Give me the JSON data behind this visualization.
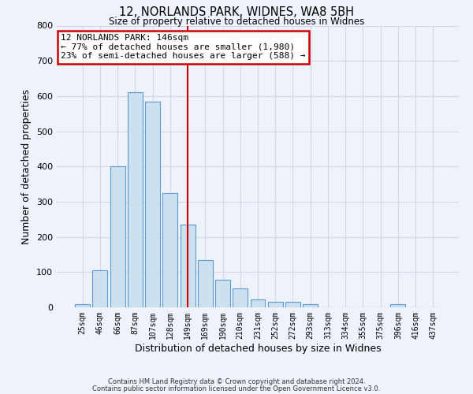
{
  "title1": "12, NORLANDS PARK, WIDNES, WA8 5BH",
  "title2": "Size of property relative to detached houses in Widnes",
  "xlabel": "Distribution of detached houses by size in Widnes",
  "ylabel": "Number of detached properties",
  "bar_labels": [
    "25sqm",
    "46sqm",
    "66sqm",
    "87sqm",
    "107sqm",
    "128sqm",
    "149sqm",
    "169sqm",
    "190sqm",
    "210sqm",
    "231sqm",
    "252sqm",
    "272sqm",
    "293sqm",
    "313sqm",
    "334sqm",
    "355sqm",
    "375sqm",
    "396sqm",
    "416sqm",
    "437sqm"
  ],
  "bar_values": [
    8,
    105,
    400,
    610,
    585,
    325,
    235,
    135,
    78,
    53,
    22,
    15,
    15,
    8,
    0,
    0,
    0,
    0,
    8,
    0,
    0
  ],
  "bar_color": "#cce0f0",
  "bar_edge_color": "#5b9bd5",
  "property_bar_index": 6,
  "property_label": "12 NORLANDS PARK: 146sqm",
  "annotation_line1": "← 77% of detached houses are smaller (1,980)",
  "annotation_line2": "23% of semi-detached houses are larger (588) →",
  "annotation_box_color": "#ffffff",
  "annotation_box_edge_color": "#cc0000",
  "vline_color": "#cc0000",
  "ylim": [
    0,
    800
  ],
  "yticks": [
    0,
    100,
    200,
    300,
    400,
    500,
    600,
    700,
    800
  ],
  "grid_color": "#d0d8e8",
  "bg_color": "#eef2fa",
  "footer1": "Contains HM Land Registry data © Crown copyright and database right 2024.",
  "footer2": "Contains public sector information licensed under the Open Government Licence v3.0."
}
